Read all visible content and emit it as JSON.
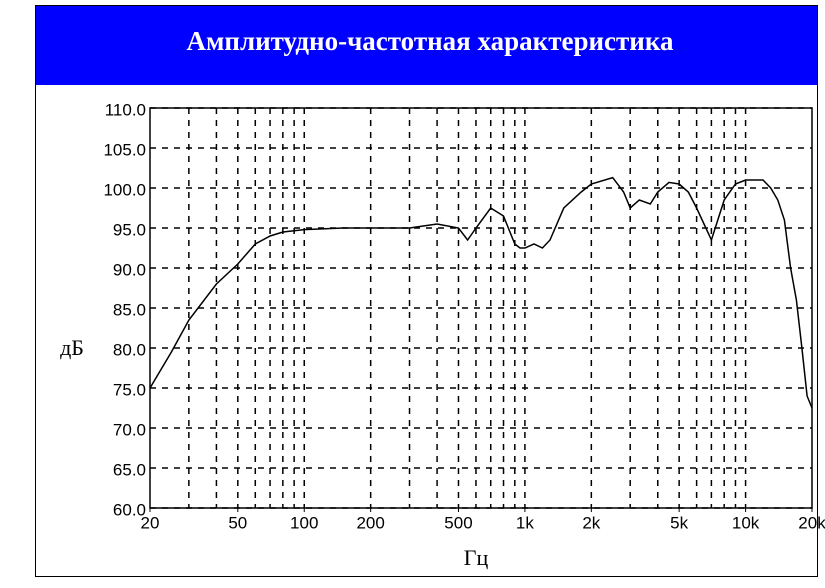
{
  "chart_data": {
    "type": "line",
    "title": "Амплитудно-частотная характеристика",
    "x_label": "Гц",
    "y_label": "дБ",
    "xscale": "log",
    "grid": true,
    "color": "#000000",
    "xlim": [
      20,
      20000
    ],
    "ylim": [
      60,
      110
    ],
    "xticks": [
      20,
      50,
      100,
      200,
      500,
      {
        "value": 1000,
        "label": "1k"
      },
      {
        "value": 2000,
        "label": "2k"
      },
      {
        "value": 5000,
        "label": "5k"
      },
      {
        "value": 10000,
        "label": "10k"
      },
      {
        "value": 20000,
        "label": "20k"
      }
    ],
    "x_grid": [
      30,
      40,
      50,
      60,
      70,
      80,
      90,
      100,
      200,
      300,
      400,
      500,
      600,
      700,
      800,
      900,
      1000,
      2000,
      3000,
      4000,
      5000,
      6000,
      7000,
      8000,
      9000,
      10000
    ],
    "yticks": [
      {
        "value": 60,
        "label": "60.0"
      },
      {
        "value": 65,
        "label": "65.0"
      },
      {
        "value": 70,
        "label": "70.0"
      },
      {
        "value": 75,
        "label": "75.0"
      },
      {
        "value": 80,
        "label": "80.0"
      },
      {
        "value": 85,
        "label": "85.0"
      },
      {
        "value": 90,
        "label": "90.0"
      },
      {
        "value": 95,
        "label": "95.0"
      },
      {
        "value": 100,
        "label": "100.0"
      },
      {
        "value": 105,
        "label": "105.0"
      },
      {
        "value": 110,
        "label": "110.0"
      }
    ],
    "x": [
      20,
      25,
      30,
      40,
      50,
      60,
      70,
      80,
      100,
      150,
      200,
      300,
      400,
      500,
      550,
      600,
      700,
      800,
      900,
      950,
      1000,
      1100,
      1200,
      1300,
      1500,
      1800,
      2000,
      2500,
      2800,
      3000,
      3300,
      3700,
      4000,
      4500,
      5000,
      5500,
      6000,
      7000,
      8000,
      9000,
      10000,
      11000,
      12000,
      13000,
      14000,
      15000,
      16000,
      17000,
      18000,
      19000,
      20000
    ],
    "values": [
      75,
      79.5,
      83.5,
      88,
      90.5,
      93,
      94,
      94.5,
      94.8,
      95,
      95,
      95,
      95.5,
      95,
      93.5,
      95,
      97.5,
      96.5,
      93,
      92.5,
      92.5,
      93,
      92.5,
      93.5,
      97.5,
      99.5,
      100.5,
      101.3,
      99.5,
      97.5,
      98.5,
      98,
      99.5,
      100.7,
      100.5,
      99.5,
      97.5,
      93.5,
      98.5,
      100.5,
      101,
      101,
      101,
      100,
      98.5,
      96,
      90,
      86,
      80,
      74,
      72.5
    ]
  }
}
